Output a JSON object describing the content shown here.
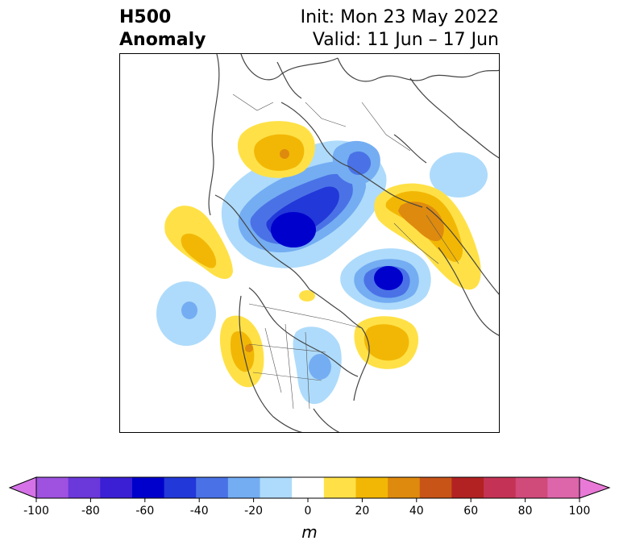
{
  "header": {
    "title_line1": "H500",
    "title_line2": "Anomaly",
    "init_text": "Init: Mon 23 May 2022",
    "valid_text": "Valid: 11 Jun – 17 Jun"
  },
  "colorbar": {
    "unit": "m",
    "tick_labels": [
      "-100",
      "-80",
      "-60",
      "-40",
      "-20",
      "0",
      "20",
      "40",
      "60",
      "80",
      "100"
    ],
    "levels": [
      -100,
      -90,
      -80,
      -70,
      -60,
      -50,
      -40,
      -30,
      -20,
      -10,
      10,
      20,
      30,
      40,
      50,
      60,
      70,
      80,
      90,
      100
    ],
    "colors": [
      "#d672e8",
      "#9e52df",
      "#6b38d9",
      "#3a1fd4",
      "#0000cc",
      "#2238d8",
      "#4a72e6",
      "#74adf2",
      "#aedbfb",
      "#ffffff",
      "#ffe147",
      "#f2b705",
      "#de8a0e",
      "#c85418",
      "#b22222",
      "#c43355",
      "#d04a7a",
      "#dd66aa",
      "#e879d6"
    ]
  },
  "map": {
    "anomaly_colors": {
      "blue_light": "#aedbfb",
      "blue_mid": "#74adf2",
      "blue_med": "#4a72e6",
      "blue_deep": "#2238d8",
      "blue_core": "#0000cc",
      "yellow_light": "#ffe147",
      "yellow_mid": "#f2b705",
      "orange": "#de8a0e"
    },
    "coastline_color": "#444444"
  }
}
